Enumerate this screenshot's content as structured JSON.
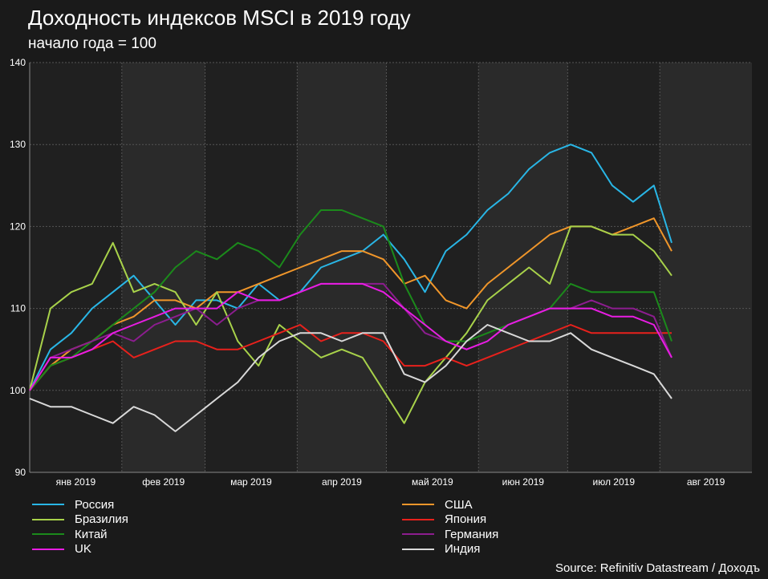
{
  "chart_data": {
    "type": "line",
    "title": "Доходность индексов MSCI в 2019 году",
    "subtitle": "начало года = 100",
    "source": "Source: Refinitiv Datastream / Доходъ",
    "ylim": [
      90,
      140
    ],
    "yticks": [
      "90",
      "100",
      "110",
      "120",
      "130",
      "140"
    ],
    "xlim": [
      "2019-01-01",
      "2019-08-31"
    ],
    "xtick_labels": [
      "янв 2019",
      "фев 2019",
      "мар 2019",
      "апр 2019",
      "май 2019",
      "июн 2019",
      "июл 2019",
      "авг 2019"
    ],
    "grid": true,
    "legend_position": "bottom",
    "series": [
      {
        "name": "Россия",
        "color": "#29b6e6",
        "x": [
          "2019-01-01",
          "2019-01-08",
          "2019-01-15",
          "2019-01-22",
          "2019-01-29",
          "2019-02-05",
          "2019-02-12",
          "2019-02-19",
          "2019-02-26",
          "2019-03-05",
          "2019-03-12",
          "2019-03-19",
          "2019-03-26",
          "2019-04-02",
          "2019-04-09",
          "2019-04-16",
          "2019-04-23",
          "2019-04-30",
          "2019-05-07",
          "2019-05-14",
          "2019-05-21",
          "2019-05-28",
          "2019-06-04",
          "2019-06-11",
          "2019-06-18",
          "2019-06-25",
          "2019-07-02",
          "2019-07-09",
          "2019-07-16",
          "2019-07-23",
          "2019-07-30",
          "2019-08-05"
        ],
        "values": [
          100,
          105,
          107,
          110,
          112,
          114,
          111,
          108,
          111,
          111,
          110,
          113,
          111,
          112,
          115,
          116,
          117,
          119,
          116,
          112,
          117,
          119,
          122,
          124,
          127,
          129,
          130,
          129,
          125,
          123,
          125,
          118
        ]
      },
      {
        "name": "США",
        "color": "#f0962a",
        "x": [
          "2019-01-01",
          "2019-01-08",
          "2019-01-15",
          "2019-01-22",
          "2019-01-29",
          "2019-02-05",
          "2019-02-12",
          "2019-02-19",
          "2019-02-26",
          "2019-03-05",
          "2019-03-12",
          "2019-03-19",
          "2019-03-26",
          "2019-04-02",
          "2019-04-09",
          "2019-04-16",
          "2019-04-23",
          "2019-04-30",
          "2019-05-07",
          "2019-05-14",
          "2019-05-21",
          "2019-05-28",
          "2019-06-04",
          "2019-06-11",
          "2019-06-18",
          "2019-06-25",
          "2019-07-02",
          "2019-07-09",
          "2019-07-16",
          "2019-07-23",
          "2019-07-30",
          "2019-08-05"
        ],
        "values": [
          100,
          103,
          105,
          106,
          108,
          109,
          111,
          111,
          110,
          112,
          112,
          113,
          114,
          115,
          116,
          117,
          117,
          116,
          113,
          114,
          111,
          110,
          113,
          115,
          117,
          119,
          120,
          120,
          119,
          120,
          121,
          117
        ]
      },
      {
        "name": "Бразилия",
        "color": "#a8d24a",
        "x": [
          "2019-01-01",
          "2019-01-08",
          "2019-01-15",
          "2019-01-22",
          "2019-01-29",
          "2019-02-05",
          "2019-02-12",
          "2019-02-19",
          "2019-02-26",
          "2019-03-05",
          "2019-03-12",
          "2019-03-19",
          "2019-03-26",
          "2019-04-02",
          "2019-04-09",
          "2019-04-16",
          "2019-04-23",
          "2019-04-30",
          "2019-05-07",
          "2019-05-14",
          "2019-05-21",
          "2019-05-28",
          "2019-06-04",
          "2019-06-11",
          "2019-06-18",
          "2019-06-25",
          "2019-07-02",
          "2019-07-09",
          "2019-07-16",
          "2019-07-23",
          "2019-07-30",
          "2019-08-05"
        ],
        "values": [
          100,
          110,
          112,
          113,
          118,
          112,
          113,
          112,
          108,
          112,
          106,
          103,
          108,
          106,
          104,
          105,
          104,
          100,
          96,
          101,
          104,
          107,
          111,
          113,
          115,
          113,
          120,
          120,
          119,
          119,
          117,
          114
        ]
      },
      {
        "name": "Япония",
        "color": "#e8211c",
        "x": [
          "2019-01-01",
          "2019-01-08",
          "2019-01-15",
          "2019-01-22",
          "2019-01-29",
          "2019-02-05",
          "2019-02-12",
          "2019-02-19",
          "2019-02-26",
          "2019-03-05",
          "2019-03-12",
          "2019-03-19",
          "2019-03-26",
          "2019-04-02",
          "2019-04-09",
          "2019-04-16",
          "2019-04-23",
          "2019-04-30",
          "2019-05-07",
          "2019-05-14",
          "2019-05-21",
          "2019-05-28",
          "2019-06-04",
          "2019-06-11",
          "2019-06-18",
          "2019-06-25",
          "2019-07-02",
          "2019-07-09",
          "2019-07-16",
          "2019-07-23",
          "2019-07-30",
          "2019-08-05"
        ],
        "values": [
          100,
          103,
          104,
          105,
          106,
          104,
          105,
          106,
          106,
          105,
          105,
          106,
          107,
          108,
          106,
          107,
          107,
          106,
          103,
          103,
          104,
          103,
          104,
          105,
          106,
          107,
          108,
          107,
          107,
          107,
          107,
          107
        ]
      },
      {
        "name": "Китай",
        "color": "#1b8a1b",
        "x": [
          "2019-01-01",
          "2019-01-08",
          "2019-01-15",
          "2019-01-22",
          "2019-01-29",
          "2019-02-05",
          "2019-02-12",
          "2019-02-19",
          "2019-02-26",
          "2019-03-05",
          "2019-03-12",
          "2019-03-19",
          "2019-03-26",
          "2019-04-02",
          "2019-04-09",
          "2019-04-16",
          "2019-04-23",
          "2019-04-30",
          "2019-05-07",
          "2019-05-14",
          "2019-05-21",
          "2019-05-28",
          "2019-06-04",
          "2019-06-11",
          "2019-06-18",
          "2019-06-25",
          "2019-07-02",
          "2019-07-09",
          "2019-07-16",
          "2019-07-23",
          "2019-07-30",
          "2019-08-05"
        ],
        "values": [
          100,
          103,
          104,
          106,
          108,
          110,
          112,
          115,
          117,
          116,
          118,
          117,
          115,
          119,
          122,
          122,
          121,
          120,
          113,
          108,
          106,
          106,
          107,
          108,
          109,
          110,
          113,
          112,
          112,
          112,
          112,
          106
        ]
      },
      {
        "name": "Германия",
        "color": "#8c1d8f",
        "x": [
          "2019-01-01",
          "2019-01-08",
          "2019-01-15",
          "2019-01-22",
          "2019-01-29",
          "2019-02-05",
          "2019-02-12",
          "2019-02-19",
          "2019-02-26",
          "2019-03-05",
          "2019-03-12",
          "2019-03-19",
          "2019-03-26",
          "2019-04-02",
          "2019-04-09",
          "2019-04-16",
          "2019-04-23",
          "2019-04-30",
          "2019-05-07",
          "2019-05-14",
          "2019-05-21",
          "2019-05-28",
          "2019-06-04",
          "2019-06-11",
          "2019-06-18",
          "2019-06-25",
          "2019-07-02",
          "2019-07-09",
          "2019-07-16",
          "2019-07-23",
          "2019-07-30",
          "2019-08-05"
        ],
        "values": [
          100,
          104,
          105,
          106,
          107,
          106,
          108,
          109,
          110,
          108,
          110,
          111,
          111,
          112,
          113,
          113,
          113,
          113,
          110,
          107,
          106,
          105,
          106,
          108,
          109,
          110,
          110,
          111,
          110,
          110,
          109,
          104
        ]
      },
      {
        "name": "UK",
        "color": "#e81de3",
        "x": [
          "2019-01-01",
          "2019-01-08",
          "2019-01-15",
          "2019-01-22",
          "2019-01-29",
          "2019-02-05",
          "2019-02-12",
          "2019-02-19",
          "2019-02-26",
          "2019-03-05",
          "2019-03-12",
          "2019-03-19",
          "2019-03-26",
          "2019-04-02",
          "2019-04-09",
          "2019-04-16",
          "2019-04-23",
          "2019-04-30",
          "2019-05-07",
          "2019-05-14",
          "2019-05-21",
          "2019-05-28",
          "2019-06-04",
          "2019-06-11",
          "2019-06-18",
          "2019-06-25",
          "2019-07-02",
          "2019-07-09",
          "2019-07-16",
          "2019-07-23",
          "2019-07-30",
          "2019-08-05"
        ],
        "values": [
          100,
          104,
          104,
          105,
          107,
          108,
          109,
          110,
          110,
          110,
          112,
          111,
          111,
          112,
          113,
          113,
          113,
          112,
          110,
          108,
          106,
          105,
          106,
          108,
          109,
          110,
          110,
          110,
          109,
          109,
          108,
          104
        ]
      },
      {
        "name": "Индия",
        "color": "#d9d9d9",
        "x": [
          "2019-01-01",
          "2019-01-08",
          "2019-01-15",
          "2019-01-22",
          "2019-01-29",
          "2019-02-05",
          "2019-02-12",
          "2019-02-19",
          "2019-02-26",
          "2019-03-05",
          "2019-03-12",
          "2019-03-19",
          "2019-03-26",
          "2019-04-02",
          "2019-04-09",
          "2019-04-16",
          "2019-04-23",
          "2019-04-30",
          "2019-05-07",
          "2019-05-14",
          "2019-05-21",
          "2019-05-28",
          "2019-06-04",
          "2019-06-11",
          "2019-06-18",
          "2019-06-25",
          "2019-07-02",
          "2019-07-09",
          "2019-07-16",
          "2019-07-23",
          "2019-07-30",
          "2019-08-05"
        ],
        "values": [
          99,
          98,
          98,
          97,
          96,
          98,
          97,
          95,
          97,
          99,
          101,
          104,
          106,
          107,
          107,
          106,
          107,
          107,
          102,
          101,
          103,
          106,
          108,
          107,
          106,
          106,
          107,
          105,
          104,
          103,
          102,
          99
        ]
      }
    ]
  },
  "legend": {
    "left": [
      "Россия",
      "Бразилия",
      "Китай",
      "UK"
    ],
    "right": [
      "США",
      "Япония",
      "Германия",
      "Индия"
    ]
  }
}
